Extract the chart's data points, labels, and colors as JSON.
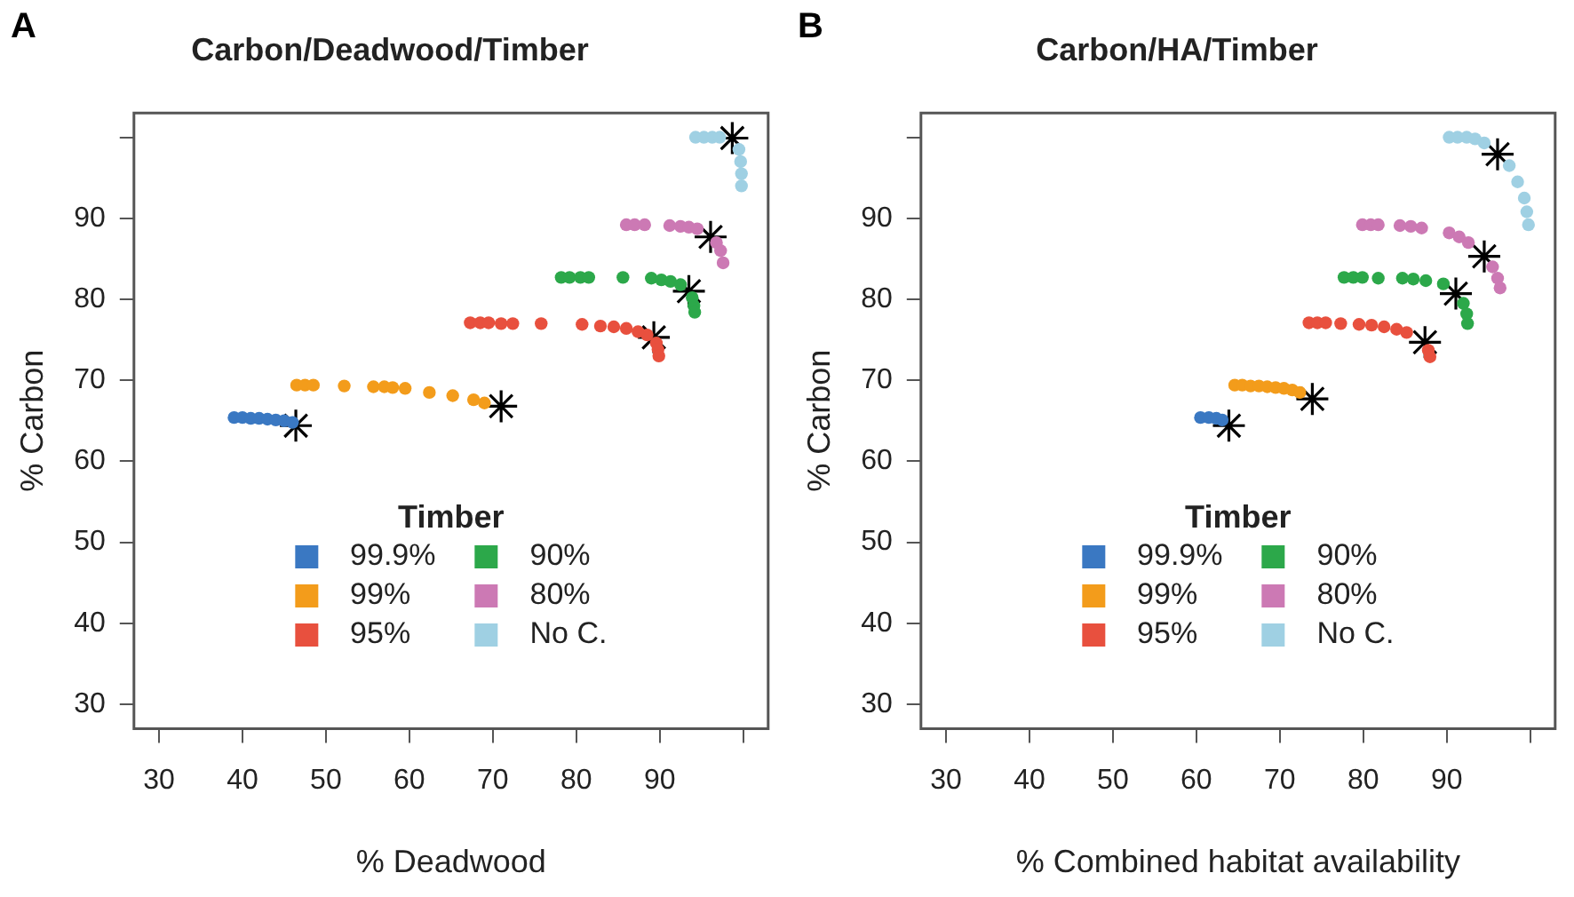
{
  "chart_data": [
    {
      "type": "scatter",
      "title": "Carbon/Deadwood/Timber",
      "xlabel": "% Deadwood",
      "ylabel": "% Carbon",
      "legend_title": "Timber",
      "legend": "bottom",
      "grid": false,
      "marker": "circle",
      "annotations": [
        "A"
      ],
      "xlim": [
        27,
        103
      ],
      "ylim": [
        27,
        103
      ],
      "xticks": [
        30,
        40,
        50,
        60,
        70,
        80,
        90,
        {
          "value": 100,
          "label": null
        }
      ],
      "yticks": [
        30,
        40,
        50,
        60,
        70,
        80,
        90,
        {
          "value": 100,
          "label": null
        }
      ],
      "series": [
        {
          "name": "99.9%",
          "color": "#3a78c2",
          "x": [
            39,
            40,
            41,
            42,
            43,
            44,
            45,
            46
          ],
          "values": [
            65.4,
            65.4,
            65.3,
            65.3,
            65.2,
            65.1,
            65.0,
            64.8
          ]
        },
        {
          "name": "99%",
          "color": "#f39c1b",
          "x": [
            46.5,
            47.5,
            48.5,
            52.2,
            55.7,
            57,
            58,
            59.5,
            62.4,
            65.2,
            67.7,
            69
          ],
          "values": [
            69.4,
            69.4,
            69.4,
            69.3,
            69.2,
            69.2,
            69.1,
            69.0,
            68.5,
            68.1,
            67.6,
            67.2
          ]
        },
        {
          "name": "95%",
          "color": "#e8503e",
          "x": [
            67.3,
            68.5,
            69.5,
            71,
            72.4,
            75.8,
            80.7,
            82.9,
            84.5,
            86,
            87.4,
            88.5,
            89.6,
            89.8,
            89.9
          ],
          "values": [
            77.1,
            77.1,
            77.1,
            77.0,
            77.0,
            77.0,
            76.9,
            76.7,
            76.6,
            76.4,
            76.0,
            75.6,
            74.6,
            73.8,
            73.0
          ]
        },
        {
          "name": "90%",
          "color": "#2ca84a",
          "x": [
            78.2,
            79.2,
            80.5,
            81.5,
            85.6,
            89,
            90.2,
            91.3,
            92.5,
            93.9,
            94.1,
            94.2
          ],
          "values": [
            82.7,
            82.7,
            82.7,
            82.7,
            82.7,
            82.6,
            82.4,
            82.2,
            81.8,
            80.2,
            79.2,
            78.4
          ]
        },
        {
          "name": "80%",
          "color": "#cc79b4",
          "x": [
            86,
            87,
            88.2,
            91.2,
            92.5,
            93.5,
            94.5,
            96.8,
            97.3,
            97.6
          ],
          "values": [
            89.2,
            89.2,
            89.2,
            89.1,
            89.0,
            88.9,
            88.7,
            87.0,
            86.0,
            84.5
          ]
        },
        {
          "name": "No C.",
          "color": "#9fd0e3",
          "x": [
            94.3,
            95.3,
            96.3,
            97.2,
            99.5,
            99.7,
            99.8,
            99.8
          ],
          "values": [
            100,
            100,
            100,
            100,
            98.5,
            97,
            95.5,
            94
          ]
        },
        {
          "color": "#000000",
          "marker": "cross",
          "x": [
            46.4,
            71,
            89.3,
            93.5,
            96.1,
            98.7
          ],
          "values": [
            64.4,
            66.8,
            75.3,
            81.0,
            87.7,
            99.9
          ]
        }
      ]
    },
    {
      "type": "scatter",
      "title": "Carbon/HA/Timber",
      "xlabel": "% Combined habitat availability",
      "ylabel": "% Carbon",
      "legend_title": "Timber",
      "legend": "bottom",
      "grid": false,
      "marker": "circle",
      "annotations": [
        "B"
      ],
      "xlim": [
        27,
        103
      ],
      "ylim": [
        27,
        103
      ],
      "xticks": [
        30,
        40,
        50,
        60,
        70,
        80,
        90,
        {
          "value": 100,
          "label": null
        }
      ],
      "yticks": [
        30,
        40,
        50,
        60,
        70,
        80,
        90,
        {
          "value": 100,
          "label": null
        }
      ],
      "series": [
        {
          "name": "99.9%",
          "color": "#3a78c2",
          "x": [
            60.5,
            61.5,
            62.4,
            63.1
          ],
          "values": [
            65.4,
            65.4,
            65.3,
            65.1
          ]
        },
        {
          "name": "99%",
          "color": "#f39c1b",
          "x": [
            64.6,
            65.5,
            66.5,
            67.5,
            68.5,
            69.5,
            70.5,
            71.5,
            72.4
          ],
          "values": [
            69.4,
            69.4,
            69.3,
            69.3,
            69.2,
            69.1,
            69.0,
            68.8,
            68.5
          ]
        },
        {
          "name": "95%",
          "color": "#e8503e",
          "x": [
            73.5,
            74.5,
            75.5,
            77.3,
            79.5,
            81,
            82.5,
            84,
            85.2,
            87.8,
            88
          ],
          "values": [
            77.1,
            77.1,
            77.1,
            77.0,
            76.9,
            76.8,
            76.6,
            76.3,
            75.9,
            73.7,
            72.9
          ]
        },
        {
          "name": "90%",
          "color": "#2ca84a",
          "x": [
            77.7,
            78.8,
            79.9,
            81.8,
            84.7,
            86,
            87.5,
            89.6,
            92,
            92.4,
            92.5
          ],
          "values": [
            82.7,
            82.7,
            82.7,
            82.6,
            82.6,
            82.5,
            82.3,
            81.9,
            79.5,
            78.2,
            77.0
          ]
        },
        {
          "name": "80%",
          "color": "#cc79b4",
          "x": [
            79.9,
            80.9,
            81.8,
            84.4,
            85.7,
            87,
            90.3,
            91.5,
            92.6,
            95.5,
            96.1,
            96.4
          ],
          "values": [
            89.2,
            89.2,
            89.2,
            89.1,
            89.0,
            88.8,
            88.2,
            87.7,
            87.0,
            84.0,
            82.6,
            81.4
          ]
        },
        {
          "name": "No C.",
          "color": "#9fd0e3",
          "x": [
            90.3,
            91.3,
            92.4,
            93.4,
            94.5,
            97.5,
            98.5,
            99.3,
            99.6,
            99.8
          ],
          "values": [
            100,
            100,
            100,
            99.8,
            99.3,
            96.5,
            94.5,
            92.5,
            90.8,
            89.2
          ]
        },
        {
          "color": "#000000",
          "marker": "cross",
          "x": [
            63.9,
            73.9,
            87.4,
            91.1,
            94.5,
            96.1
          ],
          "values": [
            64.4,
            67.7,
            74.7,
            80.7,
            85.3,
            97.9
          ]
        }
      ]
    }
  ]
}
